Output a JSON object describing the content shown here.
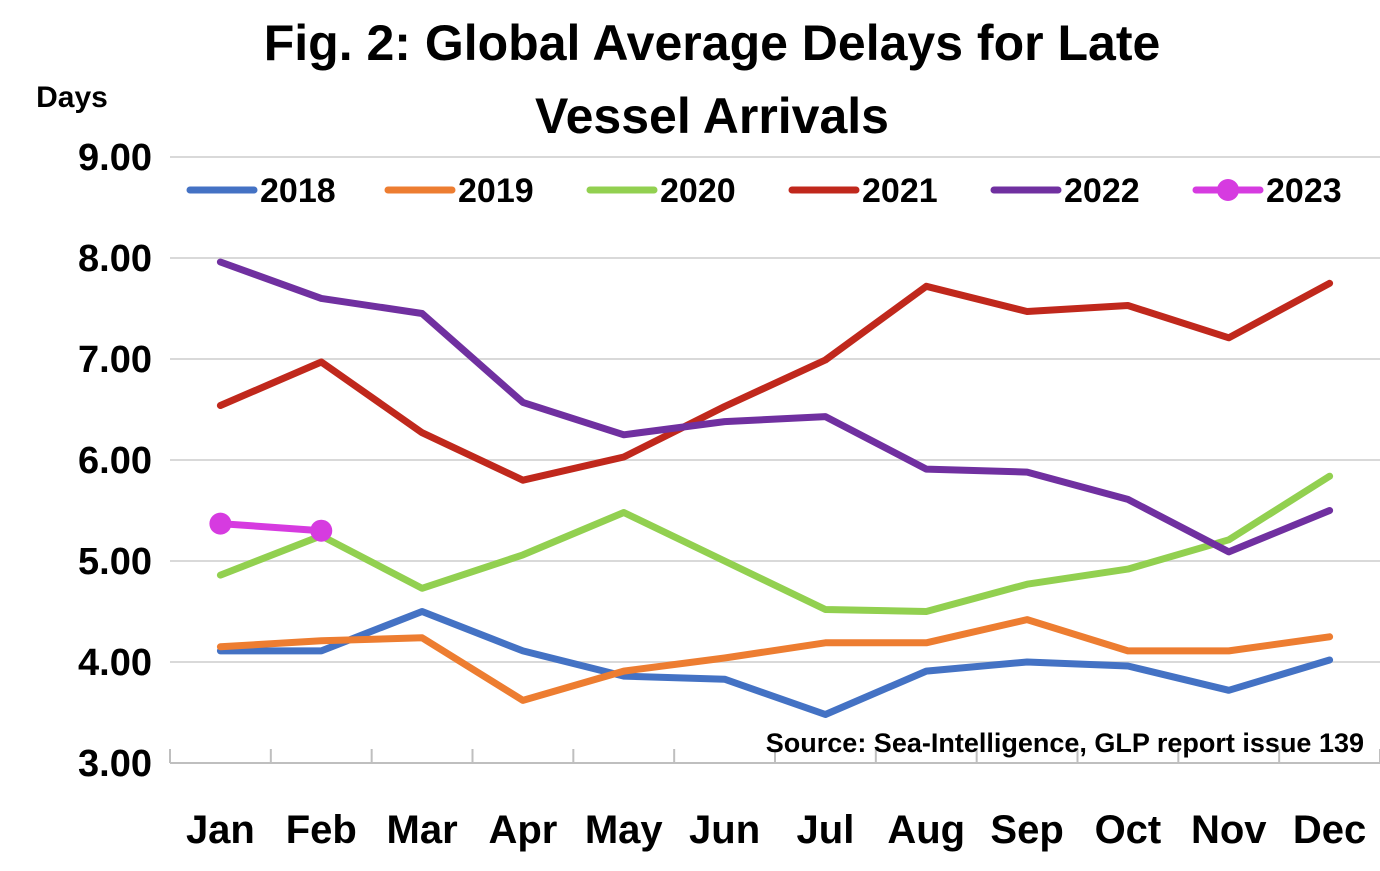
{
  "chart_data": {
    "type": "line",
    "title_line1": "Fig. 2: Global Average Delays for Late",
    "title_line2": "Vessel Arrivals",
    "ylabel": "Days",
    "xlabel": "",
    "ylim": [
      3.0,
      9.0
    ],
    "ytick_step": 1.0,
    "y_ticks": [
      "3.00",
      "4.00",
      "5.00",
      "6.00",
      "7.00",
      "8.00",
      "9.00"
    ],
    "categories": [
      "Jan",
      "Feb",
      "Mar",
      "Apr",
      "May",
      "Jun",
      "Jul",
      "Aug",
      "Sep",
      "Oct",
      "Nov",
      "Dec"
    ],
    "grid": true,
    "legend_position": "top",
    "source": "Source: Sea-Intelligence, GLP report issue 139",
    "series": [
      {
        "name": "2018",
        "color": "#4472c4",
        "markers": false,
        "values": [
          4.11,
          4.11,
          4.5,
          4.11,
          3.86,
          3.83,
          3.48,
          3.91,
          4.0,
          3.96,
          3.72,
          4.02
        ]
      },
      {
        "name": "2019",
        "color": "#ed7d31",
        "markers": false,
        "values": [
          4.15,
          4.21,
          4.24,
          3.62,
          3.91,
          4.04,
          4.19,
          4.19,
          4.42,
          4.11,
          4.11,
          4.25
        ]
      },
      {
        "name": "2020",
        "color": "#92d050",
        "markers": false,
        "values": [
          4.86,
          5.25,
          4.73,
          5.06,
          5.48,
          5.0,
          4.52,
          4.5,
          4.77,
          4.92,
          5.21,
          5.84
        ]
      },
      {
        "name": "2021",
        "color": "#c0281c",
        "markers": false,
        "values": [
          6.54,
          6.97,
          6.27,
          5.8,
          6.03,
          6.53,
          6.99,
          7.72,
          7.47,
          7.53,
          7.21,
          7.75
        ]
      },
      {
        "name": "2022",
        "color": "#7030a0",
        "markers": false,
        "values": [
          7.96,
          7.6,
          7.45,
          6.57,
          6.25,
          6.38,
          6.43,
          5.91,
          5.88,
          5.61,
          5.09,
          5.5
        ]
      },
      {
        "name": "2023",
        "color": "#d63be0",
        "markers": true,
        "values": [
          5.37,
          5.3,
          null,
          null,
          null,
          null,
          null,
          null,
          null,
          null,
          null,
          null
        ]
      }
    ]
  }
}
